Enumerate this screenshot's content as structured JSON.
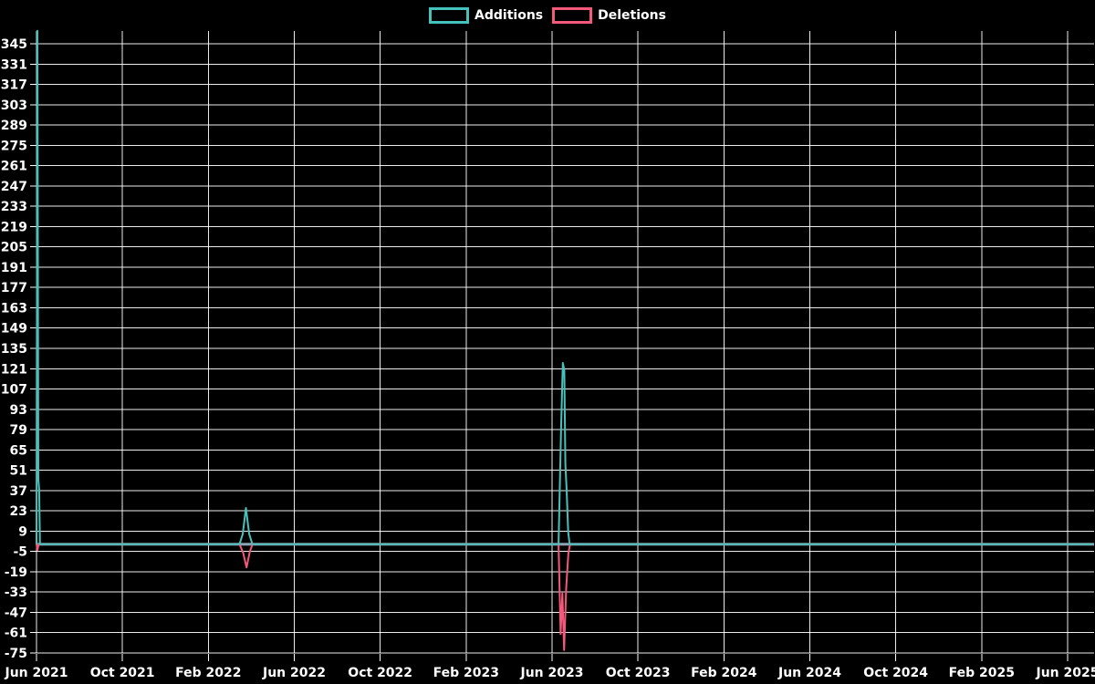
{
  "page": {
    "background_color": "#000000",
    "text_color": "#ffffff",
    "gridline_color": "#ffffff"
  },
  "legend": {
    "items": [
      {
        "label": "Additions",
        "color": "#45C2BC"
      },
      {
        "label": "Deletions",
        "color": "#F4587B"
      }
    ]
  },
  "chart_data": {
    "type": "line",
    "title": "",
    "xlabel": "",
    "ylabel": "",
    "grid": true,
    "legend_position": "top-center",
    "x_axis": {
      "unit": "months_since_jun_2021",
      "tick_labels": [
        "Jun 2021",
        "Oct 2021",
        "Feb 2022",
        "Jun 2022",
        "Oct 2022",
        "Feb 2023",
        "Jun 2023",
        "Oct 2023",
        "Feb 2024",
        "Jun 2024",
        "Oct 2024",
        "Feb 2025",
        "Jun 2025"
      ],
      "tick_month_index": [
        0,
        4,
        8,
        12,
        16,
        20,
        24,
        28,
        32,
        36,
        40,
        44,
        48
      ]
    },
    "y_axis": {
      "min": -75,
      "max": 345,
      "tick_step": 14,
      "tick_values": [
        345,
        331,
        317,
        303,
        289,
        275,
        261,
        247,
        233,
        219,
        205,
        191,
        177,
        163,
        149,
        135,
        121,
        107,
        93,
        79,
        65,
        51,
        37,
        23,
        9,
        -5,
        -19,
        -33,
        -47,
        -61,
        -75
      ]
    },
    "zero_baseline_color": "#8CA3B3",
    "series": [
      {
        "name": "Additions",
        "color": "#45C2BC",
        "points": [
          [
            0,
            0
          ],
          [
            0.042,
            354
          ],
          [
            0.085,
            45
          ],
          [
            0.125,
            38
          ],
          [
            0.16,
            0
          ],
          [
            9.45,
            0
          ],
          [
            9.6,
            7
          ],
          [
            9.75,
            25
          ],
          [
            9.9,
            7
          ],
          [
            10.05,
            0
          ],
          [
            24.3,
            0
          ],
          [
            24.42,
            80
          ],
          [
            24.5,
            125
          ],
          [
            24.57,
            120
          ],
          [
            24.62,
            55
          ],
          [
            24.68,
            37
          ],
          [
            24.75,
            8
          ],
          [
            24.82,
            0
          ],
          [
            49.2,
            0
          ]
        ]
      },
      {
        "name": "Deletions",
        "color": "#F4587B",
        "points": [
          [
            0,
            0
          ],
          [
            0.042,
            -4
          ],
          [
            0.1,
            0
          ],
          [
            9.45,
            0
          ],
          [
            9.62,
            -6
          ],
          [
            9.78,
            -16
          ],
          [
            9.93,
            -5
          ],
          [
            10.06,
            0
          ],
          [
            24.3,
            0
          ],
          [
            24.4,
            -62
          ],
          [
            24.48,
            -34
          ],
          [
            24.56,
            -73
          ],
          [
            24.66,
            -30
          ],
          [
            24.76,
            -6
          ],
          [
            24.84,
            0
          ],
          [
            49.2,
            0
          ]
        ]
      }
    ]
  }
}
